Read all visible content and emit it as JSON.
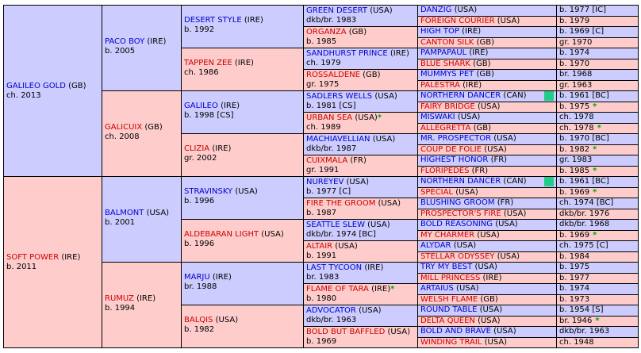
{
  "colors": {
    "male": "#ccccff",
    "female": "#ffcccc",
    "male_text": "#0000cc",
    "female_text": "#cc0000",
    "star": "#00aa00",
    "tag": "#22cc88"
  },
  "g1": [
    {
      "name": "GALILEO GOLD",
      "country": "(GB)",
      "info": "ch. 2013",
      "sex": "m"
    },
    {
      "name": "SOFT POWER",
      "country": "(IRE)",
      "info": "b. 2011",
      "sex": "f"
    }
  ],
  "g2": [
    {
      "name": "PACO BOY",
      "country": "(IRE)",
      "info": "b. 2005",
      "sex": "m"
    },
    {
      "name": "GALICUIX",
      "country": "(GB)",
      "info": "ch. 2008",
      "sex": "f"
    },
    {
      "name": "BALMONT",
      "country": "(USA)",
      "info": "b. 2001",
      "sex": "m"
    },
    {
      "name": "RUMUZ",
      "country": "(IRE)",
      "info": "b. 1994",
      "sex": "f"
    }
  ],
  "g3": [
    {
      "name": "DESERT STYLE",
      "country": "(IRE)",
      "info": "b. 1992",
      "sex": "m"
    },
    {
      "name": "TAPPEN ZEE",
      "country": "(IRE)",
      "info": "ch. 1986",
      "sex": "f"
    },
    {
      "name": "GALILEO",
      "country": "(IRE)",
      "info": "b. 1998 [CS]",
      "sex": "m"
    },
    {
      "name": "CLIZIA",
      "country": "(IRE)",
      "info": "gr. 2002",
      "sex": "f"
    },
    {
      "name": "STRAVINSKY",
      "country": "(USA)",
      "info": "b. 1996",
      "sex": "m"
    },
    {
      "name": "ALDEBARAN LIGHT",
      "country": "(USA)",
      "info": "b. 1996",
      "sex": "f"
    },
    {
      "name": "MARJU",
      "country": "(IRE)",
      "info": "br. 1988",
      "sex": "m"
    },
    {
      "name": "BALQIS",
      "country": "(USA)",
      "info": "b. 1982",
      "sex": "f"
    }
  ],
  "g4": [
    {
      "name": "GREEN DESERT",
      "country": "(USA)",
      "info": "dkb/br. 1983",
      "sex": "m",
      "star": ""
    },
    {
      "name": "ORGANZA",
      "country": "(GB)",
      "info": "b. 1985",
      "sex": "f",
      "star": ""
    },
    {
      "name": "SANDHURST PRINCE",
      "country": "(IRE)",
      "info": "ch. 1979",
      "sex": "m",
      "star": ""
    },
    {
      "name": "ROSSALDENE",
      "country": "(GB)",
      "info": "gr. 1975",
      "sex": "f",
      "star": ""
    },
    {
      "name": "SADLERS WELLS",
      "country": "(USA)",
      "info": "b. 1981 [CS]",
      "sex": "m",
      "star": ""
    },
    {
      "name": "URBAN SEA",
      "country": "(USA)",
      "info": "ch. 1989",
      "sex": "f",
      "star": "*"
    },
    {
      "name": "MACHIAVELLIAN",
      "country": "(USA)",
      "info": "dkb/br. 1987",
      "sex": "m",
      "star": ""
    },
    {
      "name": "CUIXMALA",
      "country": "(FR)",
      "info": "gr. 1991",
      "sex": "f",
      "star": ""
    },
    {
      "name": "NUREYEV",
      "country": "(USA)",
      "info": "b. 1977 [C]",
      "sex": "m",
      "star": ""
    },
    {
      "name": "FIRE THE GROOM",
      "country": "(USA)",
      "info": "b. 1987",
      "sex": "f",
      "star": ""
    },
    {
      "name": "SEATTLE SLEW",
      "country": "(USA)",
      "info": "dkb/br. 1974 [BC]",
      "sex": "m",
      "star": ""
    },
    {
      "name": "ALTAIR",
      "country": "(USA)",
      "info": "b. 1991",
      "sex": "f",
      "star": ""
    },
    {
      "name": "LAST TYCOON",
      "country": "(IRE)",
      "info": "br. 1983",
      "sex": "m",
      "star": ""
    },
    {
      "name": "FLAME OF TARA",
      "country": "(IRE)",
      "info": "b. 1980",
      "sex": "f",
      "star": "*"
    },
    {
      "name": "ADVOCATOR",
      "country": "(USA)",
      "info": "dkb/br. 1963",
      "sex": "m",
      "star": ""
    },
    {
      "name": "BOLD BUT BAFFLED",
      "country": "(USA)",
      "info": "b. 1969",
      "sex": "f",
      "star": ""
    }
  ],
  "g5": [
    {
      "name": "DANZIG",
      "country": "(USA)",
      "info": "b. 1977 [IC]",
      "sex": "m",
      "star": "",
      "tag": false
    },
    {
      "name": "FOREIGN COURIER",
      "country": "(USA)",
      "info": "b. 1979",
      "sex": "f",
      "star": "",
      "tag": false
    },
    {
      "name": "HIGH TOP",
      "country": "(IRE)",
      "info": "b. 1969 [C]",
      "sex": "m",
      "star": "",
      "tag": false
    },
    {
      "name": "CANTON SILK",
      "country": "(GB)",
      "info": "gr. 1970",
      "sex": "f",
      "star": "",
      "tag": false
    },
    {
      "name": "PAMPAPAUL",
      "country": "(IRE)",
      "info": "b. 1974",
      "sex": "m",
      "star": "",
      "tag": false
    },
    {
      "name": "BLUE SHARK",
      "country": "(GB)",
      "info": "b. 1970",
      "sex": "f",
      "star": "",
      "tag": false
    },
    {
      "name": "MUMMYS PET",
      "country": "(GB)",
      "info": "br. 1968",
      "sex": "m",
      "star": "",
      "tag": false
    },
    {
      "name": "PALESTRA",
      "country": "(IRE)",
      "info": "gr. 1963",
      "sex": "f",
      "star": "",
      "tag": false
    },
    {
      "name": "NORTHERN DANCER",
      "country": "(CAN)",
      "info": "b. 1961 [BC]",
      "sex": "m",
      "star": "",
      "tag": true
    },
    {
      "name": "FAIRY BRIDGE",
      "country": "(USA)",
      "info": "b. 1975",
      "sex": "f",
      "star": "*",
      "tag": false
    },
    {
      "name": "MISWAKI",
      "country": "(USA)",
      "info": "ch. 1978",
      "sex": "m",
      "star": "",
      "tag": false
    },
    {
      "name": "ALLEGRETTA",
      "country": "(GB)",
      "info": "ch. 1978",
      "sex": "f",
      "star": "*",
      "tag": false
    },
    {
      "name": "MR. PROSPECTOR",
      "country": "(USA)",
      "info": "b. 1970 [BC]",
      "sex": "m",
      "star": "",
      "tag": false
    },
    {
      "name": "COUP DE FOLIE",
      "country": "(USA)",
      "info": "b. 1982",
      "sex": "f",
      "star": "*",
      "tag": false
    },
    {
      "name": "HIGHEST HONOR",
      "country": "(FR)",
      "info": "gr. 1983",
      "sex": "m",
      "star": "",
      "tag": false
    },
    {
      "name": "FLORIPEDES",
      "country": "(FR)",
      "info": "b. 1985",
      "sex": "f",
      "star": "*",
      "tag": false
    },
    {
      "name": "NORTHERN DANCER",
      "country": "(CAN)",
      "info": "b. 1961 [BC]",
      "sex": "m",
      "star": "",
      "tag": true
    },
    {
      "name": "SPECIAL",
      "country": "(USA)",
      "info": "b. 1969",
      "sex": "f",
      "star": "*",
      "tag": false
    },
    {
      "name": "BLUSHING GROOM",
      "country": "(FR)",
      "info": "ch. 1974 [BC]",
      "sex": "m",
      "star": "",
      "tag": false
    },
    {
      "name": "PROSPECTOR'S FIRE",
      "country": "(USA)",
      "info": "dkb/br. 1976",
      "sex": "f",
      "star": "",
      "tag": false
    },
    {
      "name": "BOLD REASONING",
      "country": "(USA)",
      "info": "dkb/br. 1968",
      "sex": "m",
      "star": "",
      "tag": false
    },
    {
      "name": "MY CHARMER",
      "country": "(USA)",
      "info": "b. 1969",
      "sex": "f",
      "star": "*",
      "tag": false
    },
    {
      "name": "ALYDAR",
      "country": "(USA)",
      "info": "ch. 1975 [C]",
      "sex": "m",
      "star": "",
      "tag": false
    },
    {
      "name": "STELLAR ODYSSEY",
      "country": "(USA)",
      "info": "b. 1984",
      "sex": "f",
      "star": "",
      "tag": false
    },
    {
      "name": "TRY MY BEST",
      "country": "(USA)",
      "info": "b. 1975",
      "sex": "m",
      "star": "",
      "tag": false
    },
    {
      "name": "MILL PRINCESS",
      "country": "(IRE)",
      "info": "b. 1977",
      "sex": "f",
      "star": "",
      "tag": false
    },
    {
      "name": "ARTAIUS",
      "country": "(USA)",
      "info": "b. 1974",
      "sex": "m",
      "star": "",
      "tag": false
    },
    {
      "name": "WELSH FLAME",
      "country": "(GB)",
      "info": "b. 1973",
      "sex": "f",
      "star": "",
      "tag": false
    },
    {
      "name": "ROUND TABLE",
      "country": "(USA)",
      "info": "b. 1954 [S]",
      "sex": "m",
      "star": "",
      "tag": false
    },
    {
      "name": "DELTA QUEEN",
      "country": "(USA)",
      "info": "br. 1946",
      "sex": "f",
      "star": "*",
      "tag": false
    },
    {
      "name": "BOLD AND BRAVE",
      "country": "(USA)",
      "info": "dkb/br. 1963",
      "sex": "m",
      "star": "",
      "tag": false
    },
    {
      "name": "WINDING TRAIL",
      "country": "(USA)",
      "info": "ch. 1948",
      "sex": "f",
      "star": "",
      "tag": false
    }
  ]
}
